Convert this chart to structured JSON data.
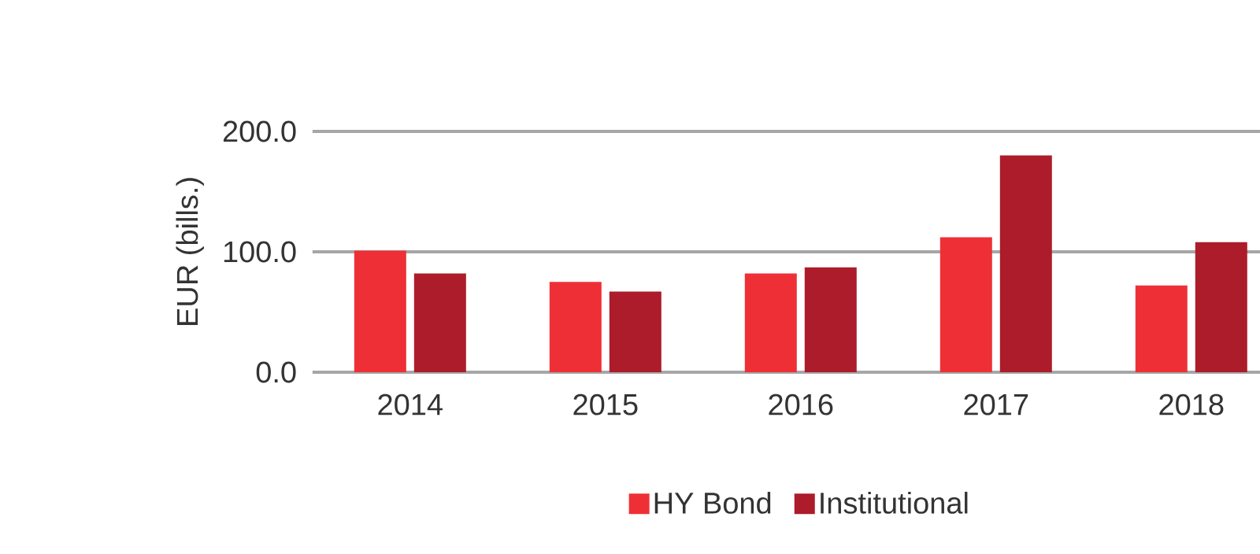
{
  "chart_data": {
    "type": "bar",
    "ylabel": "EUR (bills.)",
    "categories": [
      "2014",
      "2015",
      "2016",
      "2017",
      "2018"
    ],
    "series": [
      {
        "name": "HY Bond",
        "color": "#ee3036",
        "values": [
          101,
          75,
          82,
          112,
          72
        ]
      },
      {
        "name": "Institutional",
        "color": "#ac1c2a",
        "values": [
          82,
          67,
          87,
          180,
          108
        ]
      }
    ],
    "ylim": [
      0,
      200
    ],
    "yticks": [
      {
        "value": 0,
        "label": "0.0"
      },
      {
        "value": 100,
        "label": "100.0"
      },
      {
        "value": 200,
        "label": "200.0"
      }
    ],
    "grid": "y",
    "legend": "bottom"
  }
}
